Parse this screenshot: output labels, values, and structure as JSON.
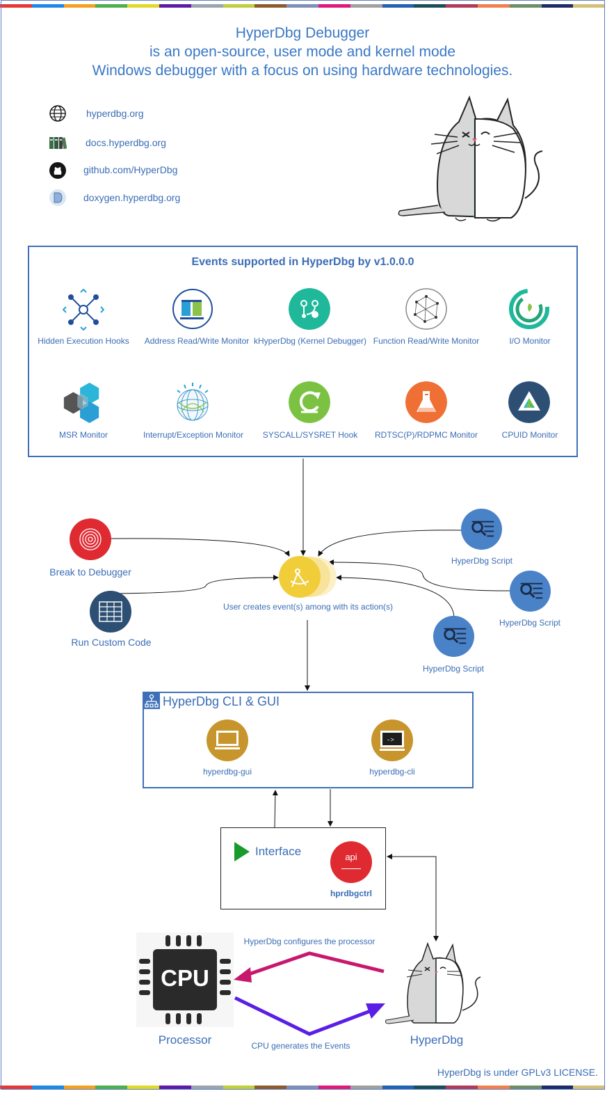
{
  "header": {
    "line1": "HyperDbg Debugger",
    "line2": "is an open-source, user mode and kernel mode",
    "line3": "Windows debugger with a focus on using hardware technologies."
  },
  "links": [
    {
      "text": "hyperdbg.org",
      "icon": "globe-icon"
    },
    {
      "text": "docs.hyperdbg.org",
      "icon": "books-icon"
    },
    {
      "text": "github.com/HyperDbg",
      "icon": "github-icon"
    },
    {
      "text": "doxygen.hyperdbg.org",
      "icon": "doxygen-icon"
    }
  ],
  "events": {
    "title": "Events supported in HyperDbg by v1.0.0.0",
    "items": [
      {
        "label": "Hidden Execution Hooks",
        "color": "#1f4e9c"
      },
      {
        "label": "Address Read/Write Monitor",
        "color": "#2a9fd6"
      },
      {
        "label": "kHyperDbg (Kernel Debugger)",
        "color": "#1fb89a"
      },
      {
        "label": "Function Read/Write Monitor",
        "color": "#888888"
      },
      {
        "label": "I/O Monitor",
        "color": "#21a67a"
      },
      {
        "label": "MSR Monitor",
        "color": "#2bb5d8"
      },
      {
        "label": "Interrupt/Exception Monitor",
        "color": "#3d9ad1"
      },
      {
        "label": "SYSCALL/SYSRET Hook",
        "color": "#7cc242"
      },
      {
        "label": "RDTSC(P)/RDPMC Monitor",
        "color": "#ef6f35"
      },
      {
        "label": "CPUID Monitor",
        "color": "#2d4f73"
      }
    ]
  },
  "flow": {
    "break": "Break to Debugger",
    "custom": "Run Custom Code",
    "user_event": "User creates event(s) among with its action(s)",
    "script1": "HyperDbg Script",
    "script2": "HyperDbg Script",
    "script3": "HyperDbg Script"
  },
  "cli": {
    "title": "HyperDbg CLI & GUI",
    "gui": "hyperdbg-gui",
    "cli": "hyperdbg-cli"
  },
  "interface": {
    "title": "Interface",
    "api": "api",
    "ctrl": "hprdbgctrl"
  },
  "bottom": {
    "cpu": "CPU",
    "processor": "Processor",
    "hyperdbg": "HyperDbg",
    "configures": "HyperDbg configures the processor",
    "generates": "CPU generates the Events",
    "license": "HyperDbg is under GPLv3 LICENSE."
  },
  "colors": {
    "accent": "#3a6db5",
    "pink_arrow": "#c8186e",
    "purple_arrow": "#5a1ee6"
  }
}
